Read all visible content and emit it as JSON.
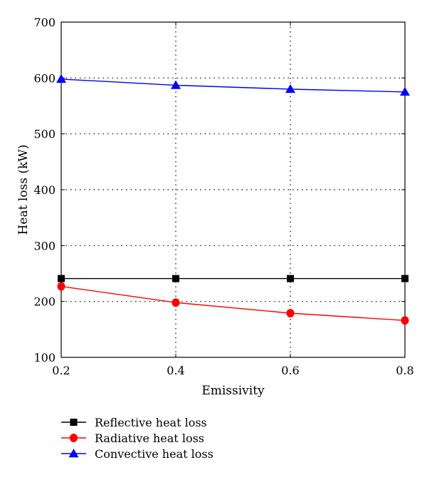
{
  "chart_data": {
    "type": "line",
    "title": "",
    "xlabel": "Emissivity",
    "ylabel": "Heat loss (kW)",
    "x": [
      0.2,
      0.4,
      0.6,
      0.8
    ],
    "x_tick_labels": [
      "0.2",
      "0.4",
      "0.6",
      "0.8"
    ],
    "y_tick_labels": [
      "100",
      "200",
      "300",
      "400",
      "500",
      "600",
      "700"
    ],
    "xlim": [
      0.2,
      0.8
    ],
    "ylim": [
      100,
      700
    ],
    "grid": "dotted",
    "legend_position": "bottom-left, below plot",
    "series": [
      {
        "name": "Reflective heat loss",
        "values": [
          241,
          241,
          241,
          241
        ],
        "color": "#000000",
        "marker": "square"
      },
      {
        "name": "Radiative heat loss",
        "values": [
          227,
          198,
          179,
          166
        ],
        "color": "#ff0000",
        "marker": "circle"
      },
      {
        "name": "Convective heat loss",
        "values": [
          598,
          587,
          580,
          575
        ],
        "color": "#0000ff",
        "marker": "triangle"
      }
    ]
  }
}
